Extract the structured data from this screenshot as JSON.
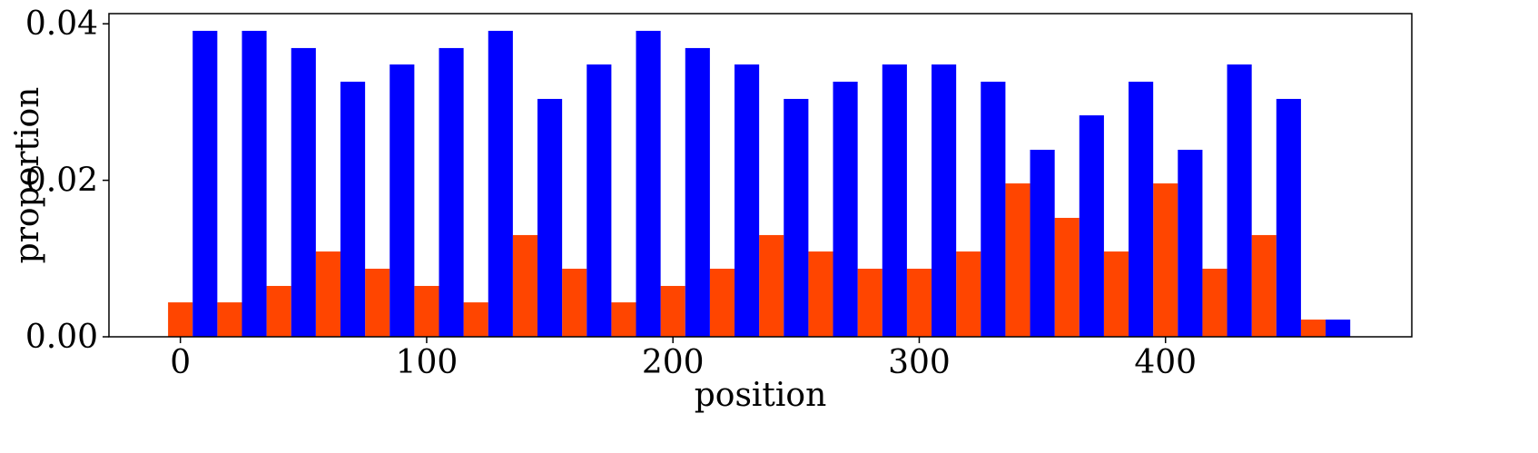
{
  "chart_data": {
    "type": "bar",
    "title": "",
    "xlabel": "position",
    "ylabel": "proportion",
    "xlim": [
      -29,
      500
    ],
    "ylim": [
      0,
      0.0413
    ],
    "xticks": [
      0,
      100,
      200,
      300,
      400
    ],
    "xtick_labels": [
      "0",
      "100",
      "200",
      "300",
      "400"
    ],
    "yticks": [
      0,
      0.02,
      0.04
    ],
    "ytick_labels": [
      "0.00",
      "0.02",
      "0.04"
    ],
    "bin_width": 20,
    "bin_starts": [
      -5,
      15,
      35,
      55,
      75,
      95,
      115,
      135,
      155,
      175,
      195,
      215,
      235,
      255,
      275,
      295,
      315,
      335,
      355,
      375,
      395,
      415,
      435,
      455
    ],
    "grid": false,
    "legend": null,
    "series": [
      {
        "color": "#ff4500",
        "values": [
          0.0044,
          0.0044,
          0.0065,
          0.0109,
          0.0087,
          0.0065,
          0.0044,
          0.013,
          0.0087,
          0.0044,
          0.0065,
          0.0087,
          0.013,
          0.0109,
          0.0087,
          0.0087,
          0.0109,
          0.0196,
          0.0152,
          0.0109,
          0.0196,
          0.0087,
          0.013,
          0.0022
        ]
      },
      {
        "color": "#0000ff",
        "values": [
          0.0391,
          0.0391,
          0.0369,
          0.0326,
          0.0348,
          0.0369,
          0.0391,
          0.0304,
          0.0348,
          0.0391,
          0.0369,
          0.0348,
          0.0304,
          0.0326,
          0.0348,
          0.0348,
          0.0326,
          0.0239,
          0.0283,
          0.0326,
          0.0239,
          0.0348,
          0.0304,
          0.0022
        ]
      }
    ]
  }
}
